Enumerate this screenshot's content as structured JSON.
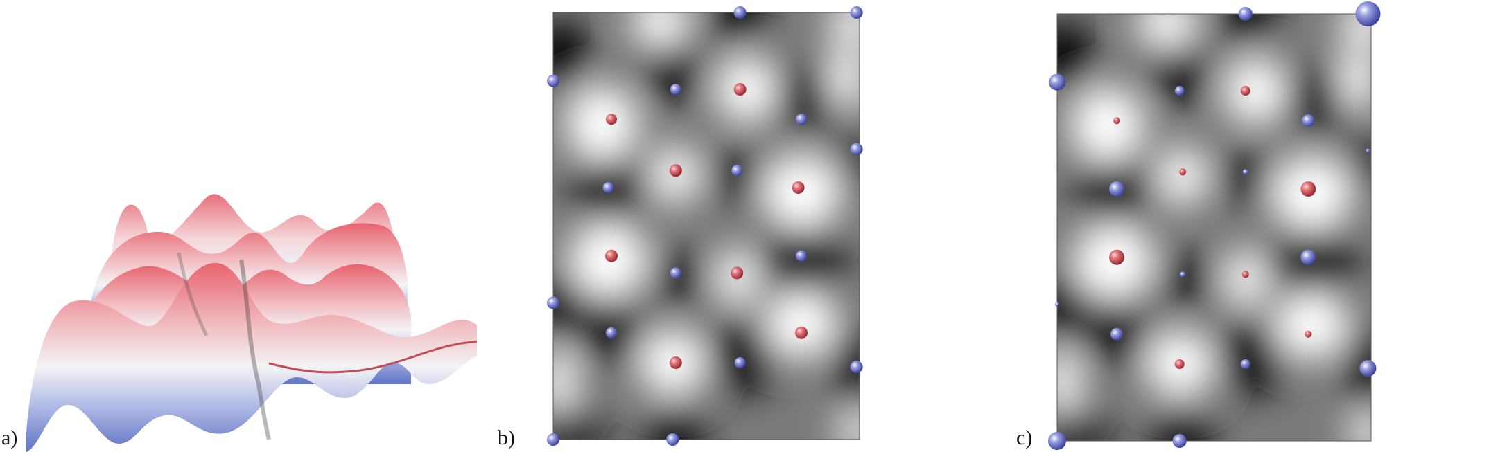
{
  "panels": [
    {
      "id": "a",
      "label": "a)"
    },
    {
      "id": "b",
      "label": "b)"
    },
    {
      "id": "c",
      "label": "c)"
    }
  ],
  "colors": {
    "background": "#ffffff",
    "field_dark": "#000000",
    "field_light": "#ffffff",
    "surface_red": "#e0707a",
    "surface_blue": "#6a7dc8",
    "atom_blue": "#6f76c9",
    "atom_red": "#d9585f"
  }
}
